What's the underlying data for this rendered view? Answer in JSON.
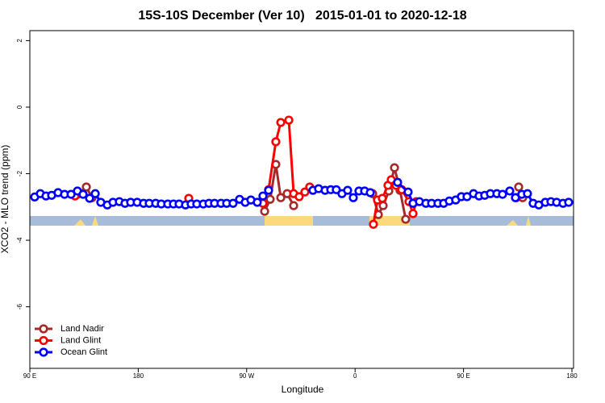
{
  "chart_data": {
    "type": "line",
    "title": "15S-10S December (Ver 10)   2015-01-01 to 2020-12-18",
    "x_label": "Longitude",
    "y_label": "XCO2 - MLO trend (ppm)",
    "xlim": [
      90,
      540
    ],
    "ylim": [
      -7.85,
      2.3
    ],
    "xticks": [
      {
        "value": 90,
        "label": "90 E"
      },
      {
        "value": 180,
        "label": "180"
      },
      {
        "value": 270,
        "label": "90 W"
      },
      {
        "value": 360,
        "label": "0"
      },
      {
        "value": 450,
        "label": "90 E"
      },
      {
        "value": 540,
        "label": "180"
      }
    ],
    "yticks": [
      2,
      0,
      -2,
      -4,
      -6
    ],
    "legend": "bottom-left",
    "series": [
      {
        "name": "Land Nadir",
        "color": "#a52a2a",
        "x": [
          129.5,
          136.9,
          141.6,
          null,
          284.9,
          289.5,
          294.2,
          298.3,
          303.6,
          309.0,
          null,
          374.6,
          379.3,
          383.3,
          388.0,
          392.7,
          397.3,
          402.0,
          null,
          495.8,
          499.1
        ],
        "values": [
          -2.62,
          -2.4,
          -2.72,
          null,
          -3.13,
          -2.77,
          -1.72,
          -2.72,
          -2.6,
          -2.96,
          null,
          -2.6,
          -3.23,
          -2.96,
          -2.52,
          -1.82,
          -2.5,
          -3.37,
          null,
          -2.4,
          -2.72
        ]
      },
      {
        "name": "Land Glint",
        "color": "#ff0000",
        "x": [
          127.5,
          null,
          221.9,
          null,
          283.5,
          288.2,
          294.2,
          298.3,
          305.0,
          309.0,
          313.6,
          318.3,
          322.3,
          null,
          375.2,
          378.6,
          382.6,
          387.3,
          390.0,
          394.0,
          398.7,
          404.7,
          408.1,
          410.7,
          null,
          493.8
        ],
        "values": [
          -2.67,
          null,
          -2.74,
          null,
          -2.89,
          -2.48,
          -1.04,
          -0.46,
          -0.39,
          -2.6,
          -2.69,
          -2.55,
          -2.4,
          null,
          -3.52,
          -2.79,
          -2.74,
          -2.35,
          -2.18,
          -2.35,
          -2.48,
          -2.84,
          -3.2,
          -2.84,
          null,
          -2.72
        ]
      },
      {
        "name": "Ocean Glint",
        "color": "#0000ff",
        "x": [
          94.0,
          98.7,
          103.4,
          108.1,
          113.4,
          118.8,
          124.2,
          129.5,
          134.2,
          139.6,
          144.3,
          148.9,
          154.3,
          159.0,
          164.3,
          169.0,
          173.7,
          179.1,
          184.4,
          189.1,
          194.5,
          199.1,
          204.5,
          209.2,
          213.9,
          219.2,
          223.9,
          228.6,
          234.0,
          238.7,
          243.3,
          248.7,
          253.4,
          258.7,
          264.1,
          268.8,
          273.5,
          278.8,
          283.5,
          288.2,
          null,
          325.0,
          329.7,
          335.1,
          339.8,
          344.4,
          349.1,
          353.8,
          358.5,
          363.2,
          367.9,
          372.6,
          null,
          395.3,
          404.0,
          408.1,
          413.4,
          418.8,
          423.5,
          428.8,
          433.5,
          438.2,
          443.5,
          448.2,
          452.9,
          458.3,
          462.9,
          467.6,
          472.3,
          477.7,
          482.4,
          488.4,
          493.1,
          498.4,
          503.1,
          507.8,
          512.5,
          517.9,
          522.6,
          527.3,
          532.6,
          537.3
        ],
        "values": [
          -2.7,
          -2.6,
          -2.67,
          -2.65,
          -2.57,
          -2.62,
          -2.62,
          -2.52,
          -2.62,
          -2.74,
          -2.6,
          -2.86,
          -2.94,
          -2.86,
          -2.84,
          -2.89,
          -2.86,
          -2.86,
          -2.89,
          -2.89,
          -2.89,
          -2.91,
          -2.91,
          -2.91,
          -2.91,
          -2.94,
          -2.91,
          -2.91,
          -2.91,
          -2.89,
          -2.89,
          -2.89,
          -2.89,
          -2.89,
          -2.77,
          -2.86,
          -2.79,
          -2.86,
          -2.67,
          -2.5,
          null,
          -2.5,
          -2.45,
          -2.5,
          -2.48,
          -2.48,
          -2.6,
          -2.5,
          -2.72,
          -2.52,
          -2.52,
          -2.57,
          null,
          -2.26,
          -2.55,
          -2.89,
          -2.84,
          -2.89,
          -2.89,
          -2.89,
          -2.89,
          -2.82,
          -2.79,
          -2.69,
          -2.69,
          -2.6,
          -2.67,
          -2.65,
          -2.6,
          -2.6,
          -2.62,
          -2.52,
          -2.72,
          -2.62,
          -2.6,
          -2.89,
          -2.94,
          -2.86,
          -2.84,
          -2.86,
          -2.89,
          -2.86
        ]
      }
    ]
  }
}
